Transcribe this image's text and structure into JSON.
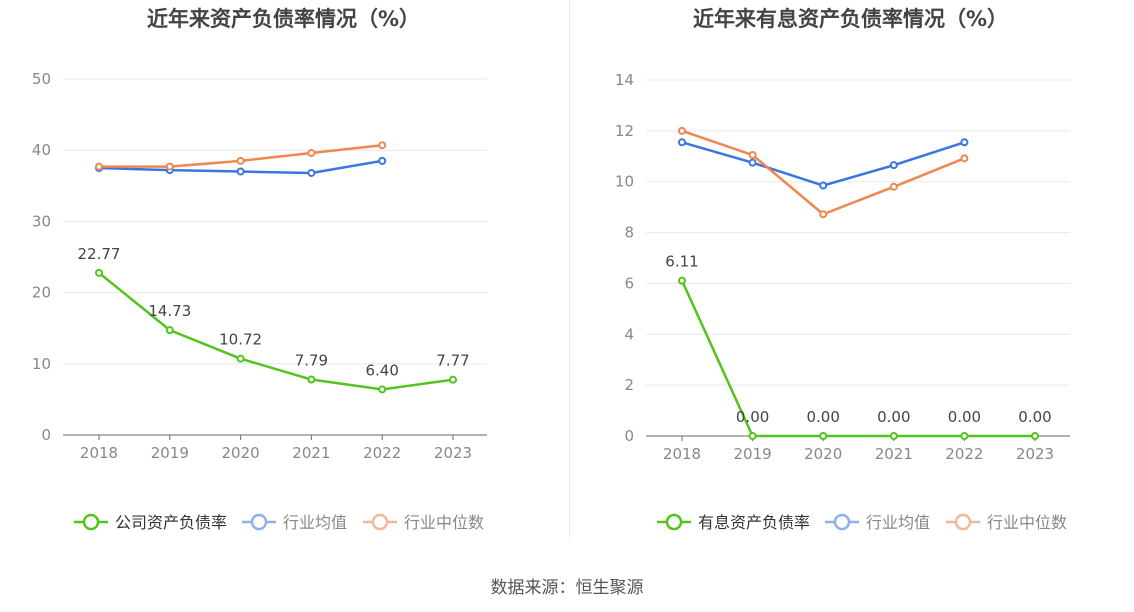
{
  "charts": [
    {
      "title": "近年来资产负债率情况（%）",
      "chart_data": {
        "type": "line",
        "title": "近年来资产负债率情况（%）",
        "x": [
          "2018",
          "2019",
          "2020",
          "2021",
          "2022",
          "2023"
        ],
        "ylim": [
          0,
          50
        ],
        "yticks": [
          0,
          10,
          20,
          30,
          40,
          50
        ],
        "grid": true,
        "legend_position": "bottom",
        "series": [
          {
            "name": "公司资产负债率",
            "color": "#52c41a",
            "values": [
              22.77,
              14.73,
              10.72,
              7.79,
              6.4,
              7.77
            ],
            "labels": [
              "22.77",
              "14.73",
              "10.72",
              "7.79",
              "6.40",
              "7.77"
            ]
          },
          {
            "name": "行业均值",
            "color": "#3b75e0",
            "values": [
              37.5,
              37.2,
              37.0,
              36.8,
              38.5,
              null
            ]
          },
          {
            "name": "行业中位数",
            "color": "#f08650",
            "values": [
              37.7,
              37.7,
              38.5,
              39.6,
              40.7,
              null
            ]
          }
        ]
      }
    },
    {
      "title": "近年来有息资产负债率情况（%）",
      "chart_data": {
        "type": "line",
        "title": "近年来有息资产负债率情况（%）",
        "x": [
          "2018",
          "2019",
          "2020",
          "2021",
          "2022",
          "2023"
        ],
        "ylim": [
          0,
          14
        ],
        "yticks": [
          0,
          2,
          4,
          6,
          8,
          10,
          12,
          14
        ],
        "grid": true,
        "legend_position": "bottom",
        "series": [
          {
            "name": "有息资产负债率",
            "color": "#52c41a",
            "values": [
              6.11,
              0.0,
              0.0,
              0.0,
              0.0,
              0.0
            ],
            "labels": [
              "6.11",
              "0.00",
              "0.00",
              "0.00",
              "0.00",
              "0.00"
            ]
          },
          {
            "name": "行业均值",
            "color": "#3b75e0",
            "values": [
              11.55,
              10.75,
              9.85,
              10.65,
              11.55,
              null
            ]
          },
          {
            "name": "行业中位数",
            "color": "#f08650",
            "values": [
              12.0,
              11.05,
              8.72,
              9.8,
              10.92,
              null
            ]
          }
        ]
      }
    }
  ],
  "source": "数据来源：恒生聚源"
}
